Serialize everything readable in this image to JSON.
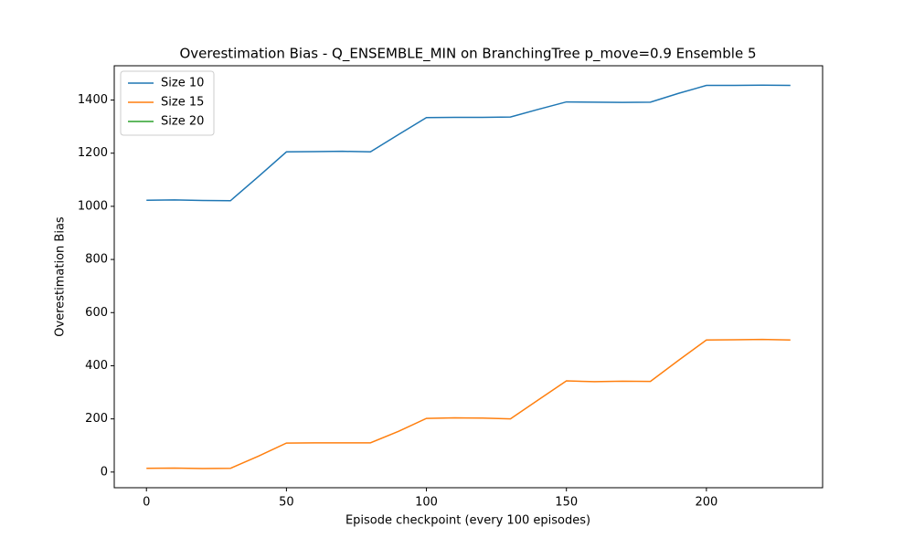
{
  "chart_data": {
    "type": "line",
    "title": "Overestimation Bias - Q_ENSEMBLE_MIN on BranchingTree p_move=0.9 Ensemble 5",
    "x_label": "Episode checkpoint (every 100 episodes)",
    "y_label": "Overestimation Bias",
    "x": [
      0,
      10,
      20,
      30,
      40,
      50,
      60,
      70,
      80,
      90,
      100,
      110,
      120,
      130,
      140,
      150,
      160,
      170,
      180,
      190,
      200,
      210,
      220,
      230
    ],
    "series": [
      {
        "name": "Size 10",
        "color": "#1f77b4",
        "values": [
          1023,
          1024,
          1022,
          1021,
          1112,
          1205,
          1206,
          1207,
          1205,
          1270,
          1334,
          1335,
          1335,
          1336,
          1365,
          1393,
          1392,
          1391,
          1392,
          1425,
          1455,
          1455,
          1456,
          1455
        ]
      },
      {
        "name": "Size 15",
        "color": "#ff7f0e",
        "values": [
          14,
          15,
          13,
          14,
          60,
          109,
          110,
          110,
          110,
          153,
          202,
          204,
          203,
          200,
          272,
          343,
          340,
          342,
          341,
          420,
          497,
          498,
          499,
          497
        ]
      },
      {
        "name": "Size 20",
        "color": "#2ca02c",
        "values": [
          null,
          null,
          null,
          null,
          null,
          null,
          null,
          null,
          null,
          null,
          null,
          null,
          null,
          null,
          null,
          null,
          null,
          null,
          null,
          null,
          null,
          null,
          null,
          null
        ]
      }
    ],
    "xlim": [
      -11.5,
      241.5
    ],
    "ylim": [
      -59,
      1529
    ],
    "xticks": [
      0,
      50,
      100,
      150,
      200
    ],
    "yticks": [
      0,
      200,
      400,
      600,
      800,
      1000,
      1200,
      1400
    ],
    "legend": "upper left"
  }
}
